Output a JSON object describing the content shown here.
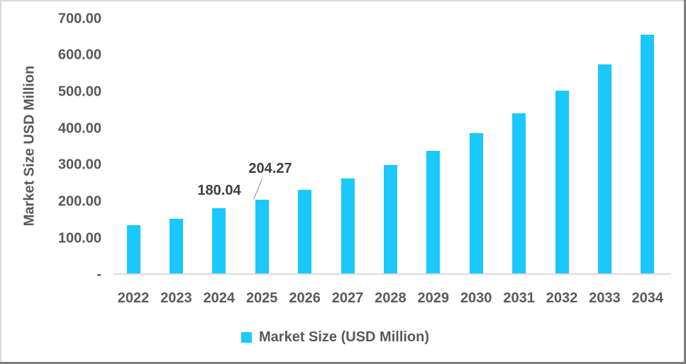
{
  "chart_data": {
    "type": "bar",
    "title": "",
    "xlabel": "",
    "ylabel": "Market Size USD Million",
    "ylim": [
      0,
      700
    ],
    "grid": false,
    "legend_position": "bottom",
    "categories": [
      "2022",
      "2023",
      "2024",
      "2025",
      "2026",
      "2027",
      "2028",
      "2029",
      "2030",
      "2031",
      "2032",
      "2033",
      "2034"
    ],
    "series": [
      {
        "name": "Market Size (USD Million)",
        "color": "#1ac8fb",
        "values": [
          134,
          152,
          180.04,
          204.27,
          231,
          261,
          298,
          338,
          386,
          440,
          502,
          574,
          655
        ]
      }
    ],
    "yticks": [
      "-",
      "100.00",
      "200.00",
      "300.00",
      "400.00",
      "500.00",
      "600.00",
      "700.00"
    ],
    "annotations": [
      {
        "category": "2024",
        "text": "180.04"
      },
      {
        "category": "2025",
        "text": "204.27"
      }
    ]
  },
  "yaxis": {
    "title": "Market Size USD Million",
    "ticks": [
      "-",
      "100.00",
      "200.00",
      "300.00",
      "400.00",
      "500.00",
      "600.00",
      "700.00"
    ]
  },
  "xaxis": {
    "ticks": [
      "2022",
      "2023",
      "2024",
      "2025",
      "2026",
      "2027",
      "2028",
      "2029",
      "2030",
      "2031",
      "2032",
      "2033",
      "2034"
    ]
  },
  "labels": {
    "l2024": "180.04",
    "l2025": "204.27"
  },
  "legend": {
    "label": "Market Size (USD Million)",
    "color": "#1ac8fb"
  }
}
